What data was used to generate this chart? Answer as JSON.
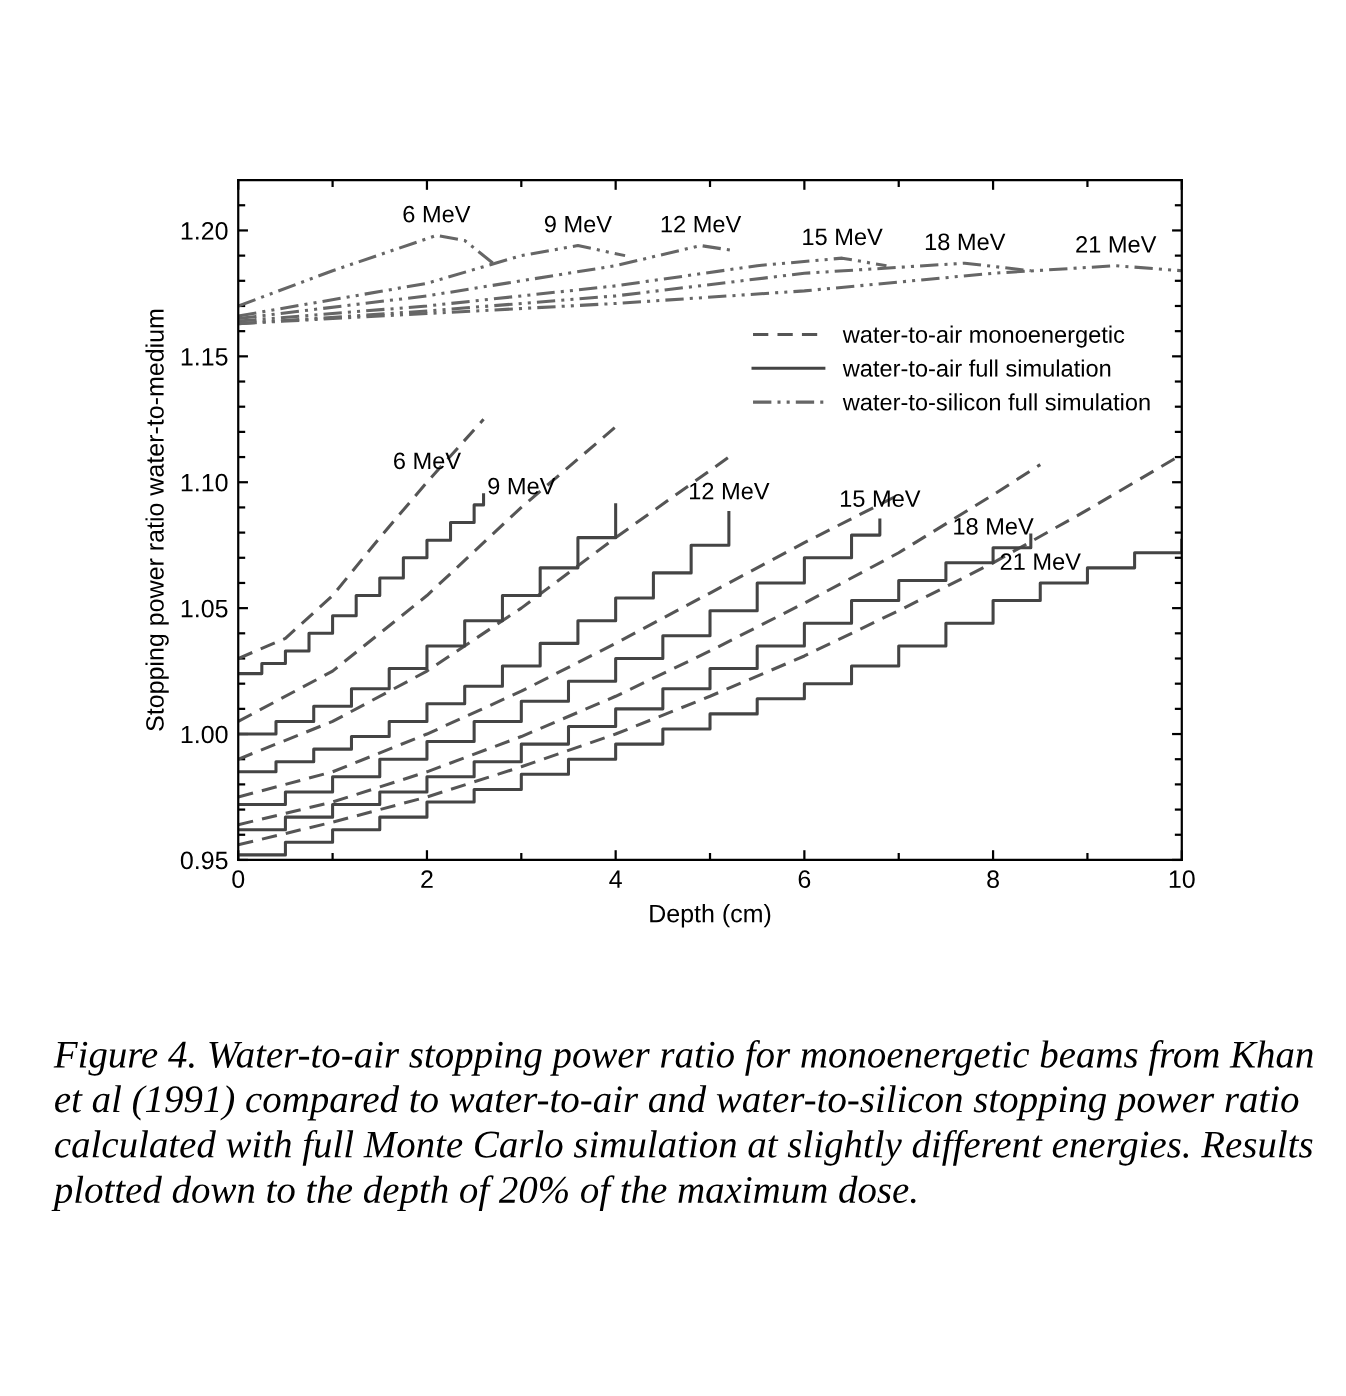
{
  "chart_data": {
    "type": "line",
    "xlabel": "Depth (cm)",
    "ylabel": "Stopping power ratio water-to-medium",
    "xlim": [
      0,
      10
    ],
    "xticks": [
      0,
      {
        "value": 1,
        "label": null
      },
      2,
      {
        "value": 3,
        "label": null
      },
      4,
      {
        "value": 5,
        "label": null
      },
      6,
      {
        "value": 7,
        "label": null
      },
      8,
      {
        "value": 9,
        "label": null
      },
      10
    ],
    "ylim": [
      0.95,
      1.22
    ],
    "yticks": [
      {
        "value": 0.95,
        "label": "0.95"
      },
      {
        "value": 0.96,
        "label": null
      },
      {
        "value": 0.97,
        "label": null
      },
      {
        "value": 0.98,
        "label": null
      },
      {
        "value": 0.99,
        "label": null
      },
      {
        "value": 1.0,
        "label": "1.00"
      },
      {
        "value": 1.01,
        "label": null
      },
      {
        "value": 1.02,
        "label": null
      },
      {
        "value": 1.03,
        "label": null
      },
      {
        "value": 1.04,
        "label": null
      },
      {
        "value": 1.05,
        "label": "1.05"
      },
      {
        "value": 1.06,
        "label": null
      },
      {
        "value": 1.07,
        "label": null
      },
      {
        "value": 1.08,
        "label": null
      },
      {
        "value": 1.09,
        "label": null
      },
      {
        "value": 1.1,
        "label": "1.10"
      },
      {
        "value": 1.11,
        "label": null
      },
      {
        "value": 1.12,
        "label": null
      },
      {
        "value": 1.13,
        "label": null
      },
      {
        "value": 1.14,
        "label": null
      },
      {
        "value": 1.15,
        "label": "1.15"
      },
      {
        "value": 1.16,
        "label": null
      },
      {
        "value": 1.17,
        "label": null
      },
      {
        "value": 1.18,
        "label": null
      },
      {
        "value": 1.19,
        "label": null
      },
      {
        "value": 1.2,
        "label": "1.20"
      },
      {
        "value": 1.21,
        "label": null
      }
    ],
    "grid": false,
    "legend": "right",
    "marker": "none",
    "series": [
      {
        "name": "water-to-air monoenergetic",
        "line_style": "dashed",
        "color": "#555555",
        "x": [
          0,
          0.5,
          1,
          1.5,
          2,
          2.6
        ],
        "values": [
          1.03,
          1.038,
          1.055,
          1.078,
          1.1,
          1.125
        ]
      },
      {
        "line_style": "dashed",
        "color": "#555555",
        "x": [
          0,
          1,
          2,
          3,
          4
        ],
        "values": [
          1.005,
          1.025,
          1.055,
          1.09,
          1.122
        ]
      },
      {
        "line_style": "dashed",
        "color": "#555555",
        "x": [
          0,
          1,
          2,
          3,
          4,
          5.2
        ],
        "values": [
          0.99,
          1.005,
          1.025,
          1.05,
          1.078,
          1.11
        ]
      },
      {
        "line_style": "dashed",
        "color": "#555555",
        "x": [
          0,
          1,
          2,
          3,
          4,
          5,
          6,
          7
        ],
        "values": [
          0.975,
          0.985,
          1.0,
          1.017,
          1.036,
          1.056,
          1.076,
          1.095
        ]
      },
      {
        "line_style": "dashed",
        "color": "#555555",
        "x": [
          0,
          1,
          2,
          3,
          4,
          5,
          6,
          7,
          8,
          8.5
        ],
        "values": [
          0.964,
          0.973,
          0.985,
          0.999,
          1.015,
          1.033,
          1.052,
          1.072,
          1.095,
          1.107
        ]
      },
      {
        "line_style": "dashed",
        "color": "#555555",
        "x": [
          0,
          1,
          2,
          3,
          4,
          5,
          6,
          7,
          8,
          9,
          10
        ],
        "values": [
          0.956,
          0.965,
          0.975,
          0.987,
          1.0,
          1.015,
          1.031,
          1.049,
          1.068,
          1.089,
          1.111
        ]
      },
      {
        "name": "water-to-air full simulation",
        "type": "step",
        "line_style": "solid",
        "color": "#444444",
        "x": [
          0,
          0.25,
          0.5,
          0.75,
          1,
          1.25,
          1.5,
          1.75,
          2,
          2.25,
          2.5,
          2.6
        ],
        "values": [
          1.024,
          1.028,
          1.033,
          1.04,
          1.047,
          1.055,
          1.062,
          1.07,
          1.077,
          1.084,
          1.091,
          1.095
        ]
      },
      {
        "type": "step",
        "line_style": "solid",
        "color": "#444444",
        "x": [
          0,
          0.4,
          0.8,
          1.2,
          1.6,
          2.0,
          2.4,
          2.8,
          3.2,
          3.6,
          4.0
        ],
        "values": [
          1.0,
          1.005,
          1.011,
          1.018,
          1.026,
          1.035,
          1.045,
          1.055,
          1.066,
          1.078,
          1.091
        ]
      },
      {
        "type": "step",
        "line_style": "solid",
        "color": "#444444",
        "x": [
          0,
          0.4,
          0.8,
          1.2,
          1.6,
          2.0,
          2.4,
          2.8,
          3.2,
          3.6,
          4.0,
          4.4,
          4.8,
          5.2
        ],
        "values": [
          0.985,
          0.989,
          0.994,
          0.999,
          1.005,
          1.012,
          1.019,
          1.027,
          1.036,
          1.045,
          1.054,
          1.064,
          1.075,
          1.088
        ]
      },
      {
        "type": "step",
        "line_style": "solid",
        "color": "#444444",
        "x": [
          0,
          0.5,
          1,
          1.5,
          2,
          2.5,
          3,
          3.5,
          4,
          4.5,
          5,
          5.5,
          6,
          6.5,
          6.8
        ],
        "values": [
          0.972,
          0.977,
          0.983,
          0.99,
          0.997,
          1.005,
          1.013,
          1.021,
          1.03,
          1.039,
          1.049,
          1.06,
          1.07,
          1.079,
          1.085
        ]
      },
      {
        "type": "step",
        "line_style": "solid",
        "color": "#444444",
        "x": [
          0,
          0.5,
          1,
          1.5,
          2,
          2.5,
          3,
          3.5,
          4,
          4.5,
          5,
          5.5,
          6,
          6.5,
          7,
          7.5,
          8,
          8.4
        ],
        "values": [
          0.962,
          0.967,
          0.972,
          0.977,
          0.983,
          0.989,
          0.996,
          1.003,
          1.01,
          1.018,
          1.026,
          1.035,
          1.044,
          1.053,
          1.061,
          1.068,
          1.074,
          1.079
        ]
      },
      {
        "type": "step",
        "line_style": "solid",
        "color": "#444444",
        "x": [
          0,
          0.5,
          1,
          1.5,
          2,
          2.5,
          3,
          3.5,
          4,
          4.5,
          5,
          5.5,
          6,
          6.5,
          7,
          7.5,
          8,
          8.5,
          9,
          9.5,
          10
        ],
        "values": [
          0.952,
          0.957,
          0.962,
          0.967,
          0.973,
          0.978,
          0.984,
          0.99,
          0.996,
          1.002,
          1.008,
          1.014,
          1.02,
          1.027,
          1.035,
          1.044,
          1.053,
          1.06,
          1.066,
          1.072,
          1.077
        ]
      },
      {
        "name": "water-to-silicon full simulation",
        "line_style": "dashdot",
        "color": "#666666",
        "x": [
          0,
          1,
          2.1,
          2.4,
          2.7
        ],
        "values": [
          1.17,
          1.184,
          1.198,
          1.196,
          1.187
        ]
      },
      {
        "line_style": "dashdot",
        "color": "#666666",
        "x": [
          0,
          2,
          3.0,
          3.6,
          4.1
        ],
        "values": [
          1.166,
          1.179,
          1.19,
          1.194,
          1.19
        ]
      },
      {
        "line_style": "dashdot",
        "color": "#666666",
        "x": [
          0,
          2,
          4,
          4.9,
          5.25
        ],
        "values": [
          1.165,
          1.174,
          1.186,
          1.194,
          1.192
        ]
      },
      {
        "line_style": "dashdot",
        "color": "#666666",
        "x": [
          0,
          2,
          4,
          5.5,
          6.4,
          6.87
        ],
        "values": [
          1.164,
          1.17,
          1.178,
          1.186,
          1.189,
          1.186
        ]
      },
      {
        "line_style": "dashdot",
        "color": "#666666",
        "x": [
          0,
          2,
          4,
          6,
          7.7,
          8.4
        ],
        "values": [
          1.163,
          1.168,
          1.174,
          1.183,
          1.187,
          1.184
        ]
      },
      {
        "line_style": "dashdot",
        "color": "#666666",
        "x": [
          0,
          2,
          4,
          6,
          8,
          9.3,
          10
        ],
        "values": [
          1.163,
          1.167,
          1.171,
          1.176,
          1.183,
          1.186,
          1.184
        ]
      }
    ],
    "annotations": [
      {
        "text": "6 MeV",
        "x": 2.1,
        "y": 1.198
      },
      {
        "text": "9 MeV",
        "x": 3.6,
        "y": 1.194
      },
      {
        "text": "12 MeV",
        "x": 4.9,
        "y": 1.194
      },
      {
        "text": "15 MeV",
        "x": 6.4,
        "y": 1.189
      },
      {
        "text": "18 MeV",
        "x": 7.7,
        "y": 1.187
      },
      {
        "text": "21 MeV",
        "x": 9.3,
        "y": 1.186
      },
      {
        "text": "6 MeV",
        "x": 2,
        "y": 1.1
      },
      {
        "text": "9 MeV",
        "x": 3,
        "y": 1.09
      },
      {
        "text": "12 MeV",
        "x": 5.2,
        "y": 1.088
      },
      {
        "text": "15 MeV",
        "x": 6.8,
        "y": 1.085
      },
      {
        "text": "18 MeV",
        "x": 8,
        "y": 1.074
      },
      {
        "text": "21 MeV",
        "x": 8.5,
        "y": 1.06
      },
      "Figure 4. Water-to-air stopping power ratio for monoenergetic beams from Khan et al (1991) compared to water-to-air and water-to-silicon stopping power ratio calculated with full Monte Carlo simulation at slightly different energies. Results plotted down to the depth of 20% of the maximum dose."
    ]
  }
}
